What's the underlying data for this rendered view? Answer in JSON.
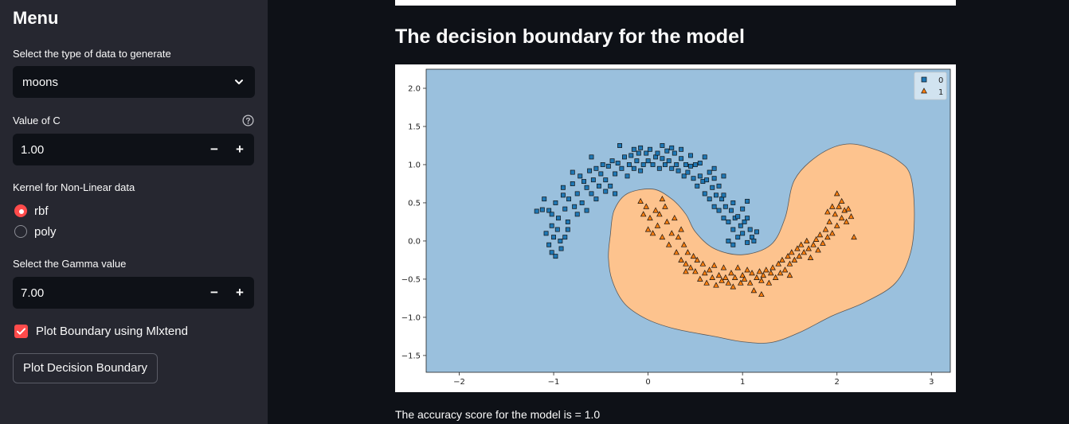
{
  "sidebar": {
    "title": "Menu",
    "dataset_label": "Select the type of data to generate",
    "dataset_value": "moons",
    "c_label": "Value of C",
    "c_value": "1.00",
    "kernel_label": "Kernel for Non-Linear data",
    "kernel_options": [
      {
        "label": "rbf",
        "selected": true
      },
      {
        "label": "poly",
        "selected": false
      }
    ],
    "gamma_label": "Select the Gamma value",
    "gamma_value": "7.00",
    "mlxtend_label": "Plot Boundary using Mlxtend",
    "mlxtend_checked": true,
    "plot_button_label": "Plot Decision Boundary",
    "minus_symbol": "−",
    "plus_symbol": "+"
  },
  "main": {
    "heading": "The decision boundary for the model",
    "accuracy_text": "The accuracy score for the model is = 1.0"
  },
  "colors": {
    "accent": "#ff4b4b",
    "region_0": "#9ac0dd",
    "region_1": "#fdc38e",
    "marker_0": "#1f77b4",
    "marker_1": "#ff7f0e"
  },
  "chart_data": {
    "type": "scatter",
    "title": "",
    "xlabel": "",
    "ylabel": "",
    "xlim": [
      -2.35,
      3.2
    ],
    "ylim": [
      -1.72,
      2.25
    ],
    "xticks": [
      -2,
      -1,
      0,
      1,
      2,
      3
    ],
    "yticks": [
      2.0,
      1.5,
      1.0,
      0.5,
      0.0,
      -0.5,
      -1.0,
      -1.5
    ],
    "xtick_labels": [
      "−2",
      "−1",
      "0",
      "1",
      "2",
      "3"
    ],
    "ytick_labels": [
      "2.0",
      "1.5",
      "1.0",
      "0.5",
      "0.0",
      "−0.5",
      "−1.0",
      "−1.5"
    ],
    "legend_position": "top-right",
    "series": [
      {
        "name": "0",
        "marker": "square",
        "color": "#1f77b4",
        "points": [
          [
            -1.18,
            0.39
          ],
          [
            -1.12,
            0.41
          ],
          [
            -1.05,
            0.4
          ],
          [
            -1.1,
            0.55
          ],
          [
            -1.02,
            0.35
          ],
          [
            -0.98,
            0.5
          ],
          [
            -0.95,
            0.3
          ],
          [
            -0.9,
            0.6
          ],
          [
            -0.88,
            0.42
          ],
          [
            -0.85,
            0.25
          ],
          [
            -1.08,
            0.1
          ],
          [
            -1.0,
            0.05
          ],
          [
            -0.96,
            0.15
          ],
          [
            -0.93,
            0.0
          ],
          [
            -1.05,
            -0.05
          ],
          [
            -1.02,
            -0.15
          ],
          [
            -0.9,
            0.7
          ],
          [
            -0.84,
            0.55
          ],
          [
            -0.8,
            0.75
          ],
          [
            -0.78,
            0.45
          ],
          [
            -0.75,
            0.62
          ],
          [
            -0.72,
            0.85
          ],
          [
            -0.7,
            0.5
          ],
          [
            -0.68,
            0.78
          ],
          [
            -0.65,
            0.7
          ],
          [
            -0.62,
            0.92
          ],
          [
            -0.6,
            0.62
          ],
          [
            -0.58,
            0.8
          ],
          [
            -0.55,
            0.95
          ],
          [
            -0.52,
            0.72
          ],
          [
            -0.5,
            0.88
          ],
          [
            -0.48,
            1.0
          ],
          [
            -0.45,
            0.8
          ],
          [
            -0.42,
            0.98
          ],
          [
            -0.4,
            0.72
          ],
          [
            -0.38,
            1.05
          ],
          [
            -0.35,
            0.88
          ],
          [
            -0.32,
            1.02
          ],
          [
            -0.3,
            1.25
          ],
          [
            -0.28,
            0.95
          ],
          [
            -0.25,
            1.1
          ],
          [
            -0.22,
            0.85
          ],
          [
            -0.2,
            1.0
          ],
          [
            -0.18,
            1.12
          ],
          [
            -0.15,
            0.95
          ],
          [
            -0.12,
            1.05
          ],
          [
            -0.1,
            1.15
          ],
          [
            -0.08,
            0.92
          ],
          [
            -0.05,
            1.0
          ],
          [
            -0.02,
            1.15
          ],
          [
            0.0,
            1.05
          ],
          [
            0.02,
            1.2
          ],
          [
            0.05,
            1.0
          ],
          [
            0.08,
            1.1
          ],
          [
            0.1,
            1.15
          ],
          [
            0.12,
            0.95
          ],
          [
            0.15,
            1.08
          ],
          [
            0.18,
            1.0
          ],
          [
            0.2,
            1.18
          ],
          [
            0.22,
            1.05
          ],
          [
            0.25,
            0.95
          ],
          [
            0.28,
            1.15
          ],
          [
            0.3,
            1.0
          ],
          [
            0.32,
            0.92
          ],
          [
            0.35,
            1.08
          ],
          [
            0.38,
            0.85
          ],
          [
            0.4,
            1.0
          ],
          [
            0.42,
            0.9
          ],
          [
            0.45,
            0.98
          ],
          [
            0.48,
            0.82
          ],
          [
            0.5,
            1.0
          ],
          [
            0.52,
            0.72
          ],
          [
            0.55,
            0.85
          ],
          [
            0.58,
            0.78
          ],
          [
            0.6,
            0.62
          ],
          [
            0.62,
            0.8
          ],
          [
            0.65,
            0.55
          ],
          [
            0.68,
            0.7
          ],
          [
            0.7,
            0.45
          ],
          [
            0.72,
            0.6
          ],
          [
            0.75,
            0.4
          ],
          [
            0.78,
            0.55
          ],
          [
            0.8,
            0.3
          ],
          [
            0.82,
            0.45
          ],
          [
            0.85,
            0.25
          ],
          [
            0.88,
            0.4
          ],
          [
            0.9,
            0.15
          ],
          [
            0.92,
            0.3
          ],
          [
            0.95,
            0.05
          ],
          [
            0.98,
            0.2
          ],
          [
            1.0,
            0.1
          ],
          [
            1.02,
            0.25
          ],
          [
            1.05,
            -0.02
          ],
          [
            1.08,
            0.15
          ],
          [
            1.1,
            0.05
          ],
          [
            1.12,
            0.0
          ],
          [
            1.15,
            0.12
          ],
          [
            0.85,
            0.0
          ],
          [
            0.9,
            -0.05
          ],
          [
            0.95,
            0.32
          ],
          [
            1.0,
            0.42
          ],
          [
            1.05,
            0.3
          ],
          [
            0.8,
            0.6
          ],
          [
            0.75,
            0.72
          ],
          [
            0.7,
            0.82
          ],
          [
            0.65,
            0.9
          ],
          [
            0.55,
            1.02
          ],
          [
            0.45,
            1.12
          ],
          [
            -0.35,
            0.62
          ],
          [
            -0.45,
            0.65
          ],
          [
            -0.55,
            0.55
          ],
          [
            -0.65,
            0.4
          ],
          [
            -0.75,
            0.35
          ],
          [
            -0.85,
            0.15
          ],
          [
            -0.88,
            0.05
          ],
          [
            -0.92,
            -0.1
          ],
          [
            -0.98,
            -0.2
          ],
          [
            -1.02,
            0.2
          ],
          [
            -0.8,
            0.9
          ],
          [
            -0.6,
            1.1
          ],
          [
            0.15,
            1.25
          ],
          [
            0.25,
            1.22
          ],
          [
            0.35,
            1.2
          ],
          [
            -0.15,
            1.2
          ],
          [
            -0.08,
            1.22
          ],
          [
            0.6,
            1.1
          ],
          [
            0.7,
            0.95
          ],
          [
            0.8,
            0.85
          ],
          [
            0.9,
            0.5
          ],
          [
            1.05,
            0.52
          ]
        ]
      },
      {
        "name": "1",
        "marker": "triangle",
        "color": "#ff7f0e",
        "points": [
          [
            -0.08,
            0.52
          ],
          [
            -0.05,
            0.35
          ],
          [
            -0.02,
            0.45
          ],
          [
            0.0,
            0.15
          ],
          [
            0.02,
            0.3
          ],
          [
            0.05,
            0.1
          ],
          [
            0.08,
            0.4
          ],
          [
            0.1,
            0.2
          ],
          [
            0.12,
            0.35
          ],
          [
            0.15,
            0.05
          ],
          [
            0.18,
            0.45
          ],
          [
            0.2,
            0.25
          ],
          [
            0.22,
            -0.05
          ],
          [
            0.25,
            0.1
          ],
          [
            0.28,
            0.3
          ],
          [
            0.3,
            -0.15
          ],
          [
            0.32,
            0.05
          ],
          [
            0.35,
            -0.25
          ],
          [
            0.38,
            -0.05
          ],
          [
            0.4,
            -0.3
          ],
          [
            0.42,
            -0.15
          ],
          [
            0.45,
            -0.35
          ],
          [
            0.48,
            -0.2
          ],
          [
            0.5,
            -0.4
          ],
          [
            0.52,
            -0.25
          ],
          [
            0.55,
            -0.5
          ],
          [
            0.58,
            -0.3
          ],
          [
            0.6,
            -0.42
          ],
          [
            0.62,
            -0.55
          ],
          [
            0.65,
            -0.38
          ],
          [
            0.68,
            -0.48
          ],
          [
            0.7,
            -0.32
          ],
          [
            0.72,
            -0.58
          ],
          [
            0.75,
            -0.45
          ],
          [
            0.78,
            -0.52
          ],
          [
            0.8,
            -0.35
          ],
          [
            0.82,
            -0.48
          ],
          [
            0.85,
            -0.55
          ],
          [
            0.88,
            -0.42
          ],
          [
            0.9,
            -0.6
          ],
          [
            0.92,
            -0.48
          ],
          [
            0.95,
            -0.35
          ],
          [
            0.98,
            -0.55
          ],
          [
            1.0,
            -0.45
          ],
          [
            1.02,
            -0.5
          ],
          [
            1.05,
            -0.38
          ],
          [
            1.08,
            -0.55
          ],
          [
            1.1,
            -0.42
          ],
          [
            1.12,
            -0.65
          ],
          [
            1.15,
            -0.48
          ],
          [
            1.18,
            -0.4
          ],
          [
            1.2,
            -0.52
          ],
          [
            1.22,
            -0.45
          ],
          [
            1.25,
            -0.38
          ],
          [
            1.28,
            -0.55
          ],
          [
            1.3,
            -0.42
          ],
          [
            1.32,
            -0.35
          ],
          [
            1.35,
            -0.48
          ],
          [
            1.38,
            -0.3
          ],
          [
            1.4,
            -0.42
          ],
          [
            1.42,
            -0.25
          ],
          [
            1.45,
            -0.38
          ],
          [
            1.48,
            -0.2
          ],
          [
            1.5,
            -0.3
          ],
          [
            1.52,
            -0.15
          ],
          [
            1.55,
            -0.25
          ],
          [
            1.58,
            -0.1
          ],
          [
            1.6,
            -0.2
          ],
          [
            1.62,
            -0.05
          ],
          [
            1.65,
            -0.15
          ],
          [
            1.68,
            0.0
          ],
          [
            1.7,
            -0.1
          ],
          [
            1.72,
            -0.22
          ],
          [
            1.75,
            -0.05
          ],
          [
            1.78,
            0.02
          ],
          [
            1.8,
            -0.12
          ],
          [
            1.82,
            0.08
          ],
          [
            1.85,
            -0.03
          ],
          [
            1.88,
            0.15
          ],
          [
            1.9,
            0.05
          ],
          [
            1.92,
            0.25
          ],
          [
            1.95,
            0.1
          ],
          [
            1.98,
            0.35
          ],
          [
            2.0,
            0.2
          ],
          [
            2.02,
            0.45
          ],
          [
            2.05,
            0.3
          ],
          [
            2.08,
            0.4
          ],
          [
            2.1,
            0.25
          ],
          [
            2.12,
            0.42
          ],
          [
            2.15,
            0.32
          ],
          [
            2.18,
            0.05
          ],
          [
            2.0,
            0.62
          ],
          [
            1.95,
            0.45
          ],
          [
            2.05,
            0.52
          ],
          [
            1.9,
            0.38
          ],
          [
            1.5,
            -0.45
          ],
          [
            1.2,
            -0.7
          ],
          [
            0.4,
            -0.4
          ],
          [
            0.35,
            0.15
          ],
          [
            0.15,
            0.55
          ]
        ]
      }
    ],
    "boundary_region_1": [
      [
        -0.4,
        0.08
      ],
      [
        -0.42,
        -0.22
      ],
      [
        -0.38,
        -0.52
      ],
      [
        -0.25,
        -0.82
      ],
      [
        -0.02,
        -1.02
      ],
      [
        0.28,
        -1.15
      ],
      [
        0.7,
        -1.25
      ],
      [
        1.0,
        -1.32
      ],
      [
        1.3,
        -1.33
      ],
      [
        1.6,
        -1.2
      ],
      [
        1.95,
        -0.98
      ],
      [
        2.3,
        -0.8
      ],
      [
        2.62,
        -0.55
      ],
      [
        2.78,
        -0.15
      ],
      [
        2.82,
        0.35
      ],
      [
        2.78,
        0.85
      ],
      [
        2.65,
        1.05
      ],
      [
        2.4,
        1.2
      ],
      [
        2.1,
        1.27
      ],
      [
        1.8,
        1.12
      ],
      [
        1.55,
        0.8
      ],
      [
        1.45,
        0.3
      ],
      [
        1.3,
        -0.05
      ],
      [
        1.0,
        -0.18
      ],
      [
        0.7,
        -0.1
      ],
      [
        0.5,
        0.12
      ],
      [
        0.4,
        0.35
      ],
      [
        0.25,
        0.55
      ],
      [
        0.05,
        0.68
      ],
      [
        -0.22,
        0.62
      ],
      [
        -0.36,
        0.4
      ]
    ]
  }
}
